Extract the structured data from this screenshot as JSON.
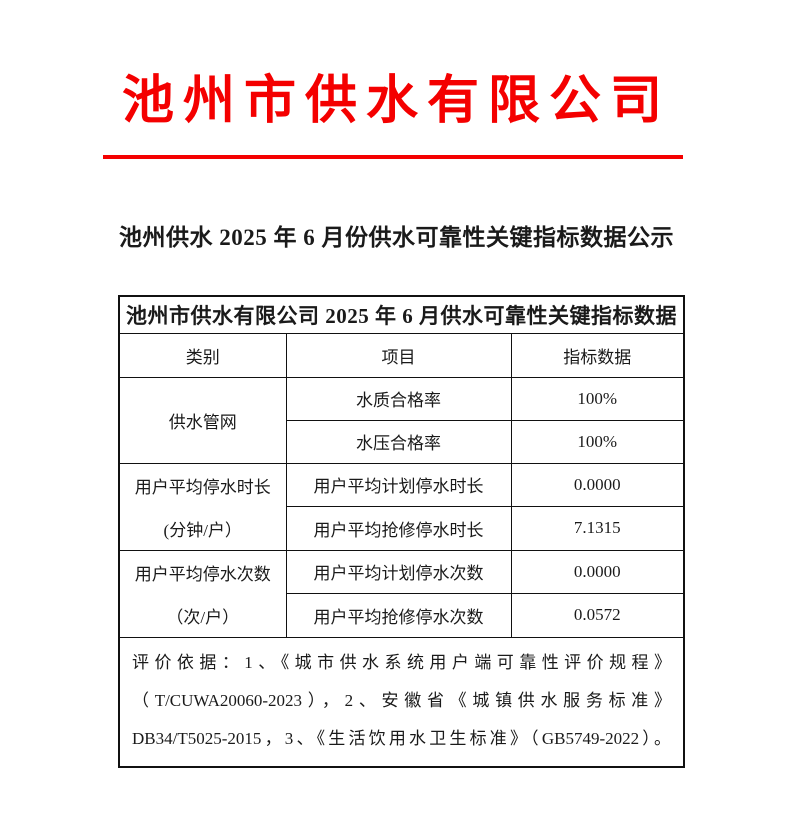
{
  "colors": {
    "accent_red": "#f40000"
  },
  "letterhead": {
    "company": "池州市供水有限公司"
  },
  "doc_title": "池州供水 2025 年 6 月份供水可靠性关键指标数据公示",
  "table": {
    "title": "池州市供水有限公司 2025 年 6 月供水可靠性关键指标数据",
    "columns": [
      "类别",
      "项目",
      "指标数据"
    ],
    "groups": [
      {
        "category": "供水管网",
        "rows": [
          {
            "item": "水质合格率",
            "value": "100%"
          },
          {
            "item": "水压合格率",
            "value": "100%"
          }
        ]
      },
      {
        "category": "用户平均停水时长",
        "category_unit": "(分钟/户）",
        "rows": [
          {
            "item": "用户平均计划停水时长",
            "value": "0.0000"
          },
          {
            "item": "用户平均抢修停水时长",
            "value": "7.1315"
          }
        ]
      },
      {
        "category": "用户平均停水次数",
        "category_unit": "（次/户）",
        "rows": [
          {
            "item": "用户平均计划停水次数",
            "value": "0.0000"
          },
          {
            "item": "用户平均抢修停水次数",
            "value": "0.0572"
          }
        ]
      }
    ],
    "note_lines": [
      "评价依据：1、《城市供水系统用户端可靠性评价规程》",
      "（T/CUWA20060-2023），2、安徽省《城镇供水服务标准》",
      "DB34/T5025-2015，3、《生活饮用水卫生标准》（GB5749-2022）。"
    ]
  }
}
